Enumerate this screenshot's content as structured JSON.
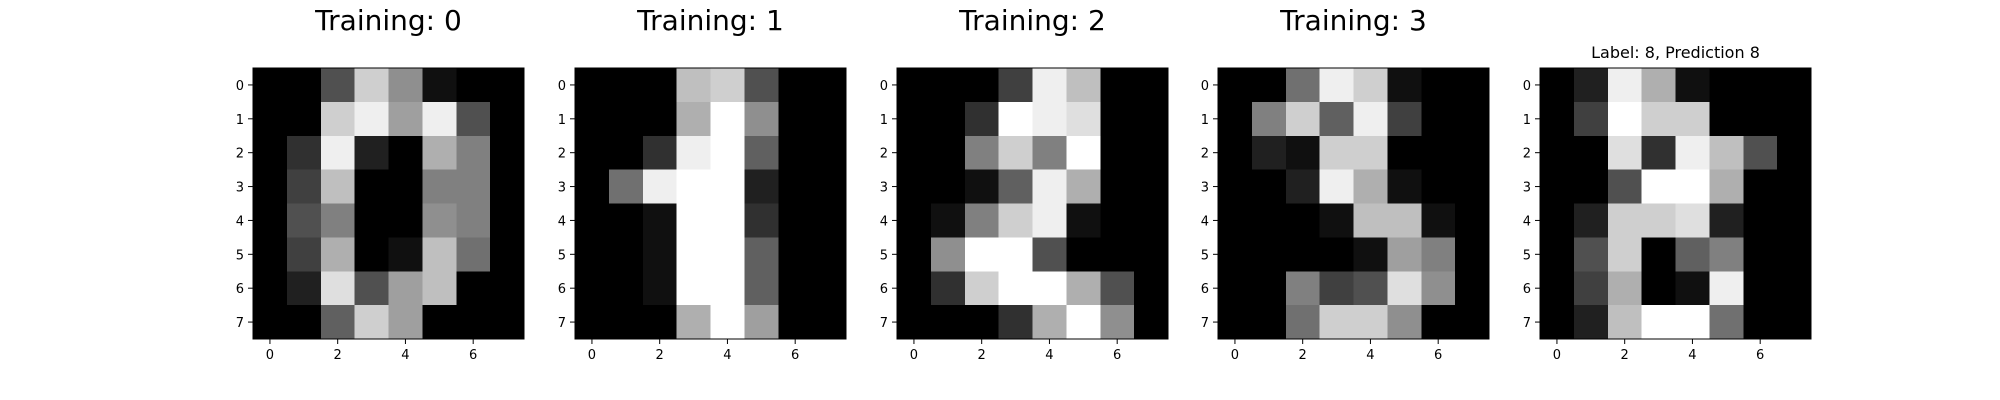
{
  "chart_data": [
    {
      "type": "heatmap",
      "title": "Training: 0",
      "xticks": [
        "0",
        "2",
        "4",
        "6"
      ],
      "yticks": [
        "0",
        "1",
        "2",
        "3",
        "4",
        "5",
        "6",
        "7"
      ],
      "colormap": "gray_r",
      "vmin": 0,
      "vmax": 16,
      "values": [
        [
          0,
          0,
          5,
          13,
          9,
          1,
          0,
          0
        ],
        [
          0,
          0,
          13,
          15,
          10,
          15,
          5,
          0
        ],
        [
          0,
          3,
          15,
          2,
          0,
          11,
          8,
          0
        ],
        [
          0,
          4,
          12,
          0,
          0,
          8,
          8,
          0
        ],
        [
          0,
          5,
          8,
          0,
          0,
          9,
          8,
          0
        ],
        [
          0,
          4,
          11,
          0,
          1,
          12,
          7,
          0
        ],
        [
          0,
          2,
          14,
          5,
          10,
          12,
          0,
          0
        ],
        [
          0,
          0,
          6,
          13,
          10,
          0,
          0,
          0
        ]
      ]
    },
    {
      "type": "heatmap",
      "title": "Training: 1",
      "xticks": [
        "0",
        "2",
        "4",
        "6"
      ],
      "yticks": [
        "0",
        "1",
        "2",
        "3",
        "4",
        "5",
        "6",
        "7"
      ],
      "colormap": "gray_r",
      "vmin": 0,
      "vmax": 16,
      "values": [
        [
          0,
          0,
          0,
          12,
          13,
          5,
          0,
          0
        ],
        [
          0,
          0,
          0,
          11,
          16,
          9,
          0,
          0
        ],
        [
          0,
          0,
          3,
          15,
          16,
          6,
          0,
          0
        ],
        [
          0,
          7,
          15,
          16,
          16,
          2,
          0,
          0
        ],
        [
          0,
          0,
          1,
          16,
          16,
          3,
          0,
          0
        ],
        [
          0,
          0,
          1,
          16,
          16,
          6,
          0,
          0
        ],
        [
          0,
          0,
          1,
          16,
          16,
          6,
          0,
          0
        ],
        [
          0,
          0,
          0,
          11,
          16,
          10,
          0,
          0
        ]
      ]
    },
    {
      "type": "heatmap",
      "title": "Training: 2",
      "xticks": [
        "0",
        "2",
        "4",
        "6"
      ],
      "yticks": [
        "0",
        "1",
        "2",
        "3",
        "4",
        "5",
        "6",
        "7"
      ],
      "colormap": "gray_r",
      "vmin": 0,
      "vmax": 16,
      "values": [
        [
          0,
          0,
          0,
          4,
          15,
          12,
          0,
          0
        ],
        [
          0,
          0,
          3,
          16,
          15,
          14,
          0,
          0
        ],
        [
          0,
          0,
          8,
          13,
          8,
          16,
          0,
          0
        ],
        [
          0,
          0,
          1,
          6,
          15,
          11,
          0,
          0
        ],
        [
          0,
          1,
          8,
          13,
          15,
          1,
          0,
          0
        ],
        [
          0,
          9,
          16,
          16,
          5,
          0,
          0,
          0
        ],
        [
          0,
          3,
          13,
          16,
          16,
          11,
          5,
          0
        ],
        [
          0,
          0,
          0,
          3,
          11,
          16,
          9,
          0
        ]
      ]
    },
    {
      "type": "heatmap",
      "title": "Training: 3",
      "xticks": [
        "0",
        "2",
        "4",
        "6"
      ],
      "yticks": [
        "0",
        "1",
        "2",
        "3",
        "4",
        "5",
        "6",
        "7"
      ],
      "colormap": "gray_r",
      "vmin": 0,
      "vmax": 16,
      "values": [
        [
          0,
          0,
          7,
          15,
          13,
          1,
          0,
          0
        ],
        [
          0,
          8,
          13,
          6,
          15,
          4,
          0,
          0
        ],
        [
          0,
          2,
          1,
          13,
          13,
          0,
          0,
          0
        ],
        [
          0,
          0,
          2,
          15,
          11,
          1,
          0,
          0
        ],
        [
          0,
          0,
          0,
          1,
          12,
          12,
          1,
          0
        ],
        [
          0,
          0,
          0,
          0,
          1,
          10,
          8,
          0
        ],
        [
          0,
          0,
          8,
          4,
          5,
          14,
          9,
          0
        ],
        [
          0,
          0,
          7,
          13,
          13,
          9,
          0,
          0
        ]
      ]
    },
    {
      "type": "heatmap",
      "title": "Label: 8, Prediction 8",
      "xticks": [
        "0",
        "2",
        "4",
        "6"
      ],
      "yticks": [
        "0",
        "1",
        "2",
        "3",
        "4",
        "5",
        "6",
        "7"
      ],
      "colormap": "gray_r",
      "vmin": 0,
      "vmax": 16,
      "values": [
        [
          0,
          2,
          15,
          11,
          1,
          0,
          0,
          0
        ],
        [
          0,
          4,
          16,
          13,
          13,
          0,
          0,
          0
        ],
        [
          0,
          0,
          14,
          3,
          15,
          12,
          5,
          0
        ],
        [
          0,
          0,
          5,
          16,
          16,
          11,
          0,
          0
        ],
        [
          0,
          2,
          13,
          13,
          14,
          2,
          0,
          0
        ],
        [
          0,
          5,
          13,
          0,
          6,
          8,
          0,
          0
        ],
        [
          0,
          4,
          11,
          0,
          1,
          15,
          0,
          0
        ],
        [
          0,
          2,
          12,
          16,
          16,
          7,
          0,
          0
        ]
      ]
    }
  ]
}
